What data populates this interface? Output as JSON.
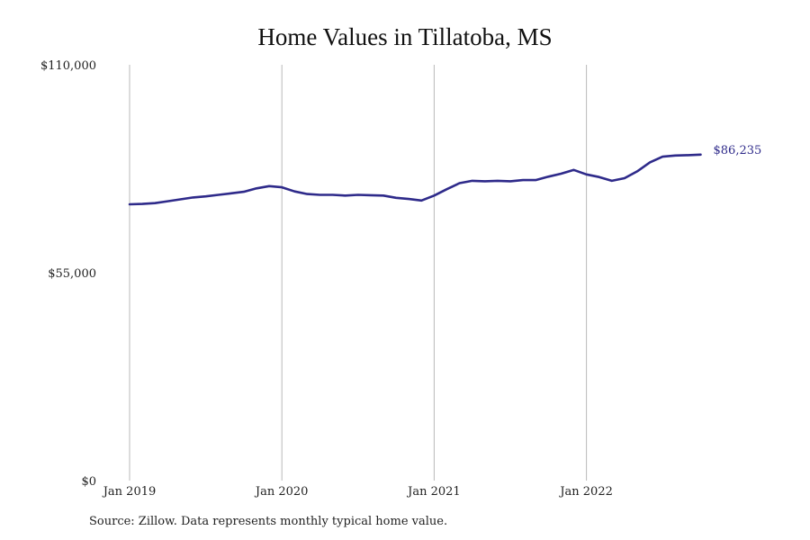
{
  "chart_data": {
    "type": "line",
    "title": "Home Values in Tillatoba, MS",
    "xlabel": "",
    "ylabel": "",
    "ylim": [
      0,
      110000
    ],
    "y_ticks": [
      {
        "value": 0,
        "label": "$0"
      },
      {
        "value": 55000,
        "label": "$55,000"
      },
      {
        "value": 110000,
        "label": "$110,000"
      }
    ],
    "x_ticks": [
      {
        "value": "2019-01",
        "label": "Jan 2019"
      },
      {
        "value": "2020-01",
        "label": "Jan 2020"
      },
      {
        "value": "2021-01",
        "label": "Jan 2021"
      },
      {
        "value": "2022-01",
        "label": "Jan 2022"
      }
    ],
    "grid": "vertical",
    "line_color": "#2e2a8a",
    "end_label": "$86,235",
    "series": [
      {
        "x": [
          "2019-01",
          "2019-02",
          "2019-03",
          "2019-04",
          "2019-05",
          "2019-06",
          "2019-07",
          "2019-08",
          "2019-09",
          "2019-10",
          "2019-11",
          "2019-12",
          "2020-01",
          "2020-02",
          "2020-03",
          "2020-04",
          "2020-05",
          "2020-06",
          "2020-07",
          "2020-08",
          "2020-09",
          "2020-10",
          "2020-11",
          "2020-12",
          "2021-01",
          "2021-02",
          "2021-03",
          "2021-04",
          "2021-05",
          "2021-06",
          "2021-07",
          "2021-08",
          "2021-09",
          "2021-10",
          "2021-11",
          "2021-12",
          "2022-01",
          "2022-02",
          "2022-03",
          "2022-04",
          "2022-05",
          "2022-06",
          "2022-07",
          "2022-08",
          "2022-09",
          "2022-10"
        ],
        "y": [
          73100,
          73200,
          73400,
          73900,
          74400,
          74900,
          75200,
          75600,
          76000,
          76400,
          77300,
          77900,
          77600,
          76500,
          75800,
          75600,
          75600,
          75400,
          75600,
          75500,
          75400,
          74800,
          74500,
          74100,
          75400,
          77100,
          78700,
          79300,
          79200,
          79300,
          79200,
          79500,
          79500,
          80400,
          81200,
          82200,
          81000,
          80300,
          79300,
          80000,
          81800,
          84200,
          85700,
          86000,
          86100,
          86235
        ]
      }
    ]
  },
  "footer": {
    "source": "Source: Zillow. Data represents monthly typical home value."
  }
}
